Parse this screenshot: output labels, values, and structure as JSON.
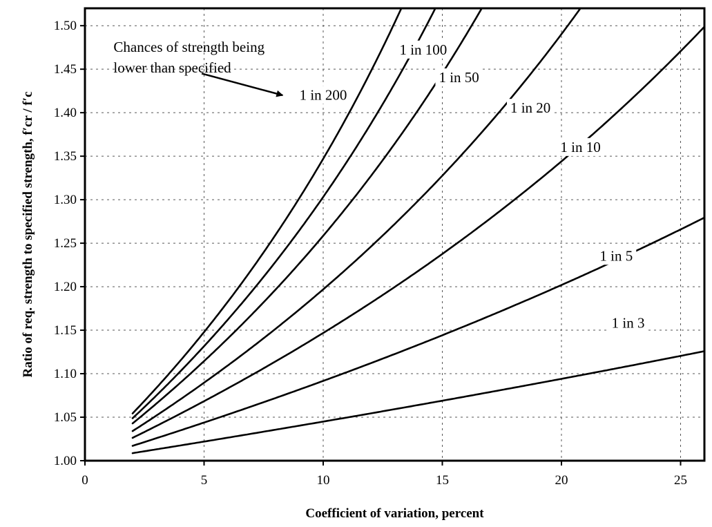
{
  "chart_data": {
    "type": "line",
    "xlabel": "Coefficient of variation, percent",
    "ylabel": "Ratio of req. strength to specified strength, f′cr / f′c",
    "xlim": [
      0,
      26
    ],
    "ylim": [
      1.0,
      1.52
    ],
    "x_ticks": [
      "0",
      "5",
      "10",
      "15",
      "20",
      "25"
    ],
    "x_tick_values": [
      0,
      5,
      10,
      15,
      20,
      25
    ],
    "y_ticks": [
      "1.00",
      "1.05",
      "1.10",
      "1.15",
      "1.20",
      "1.25",
      "1.30",
      "1.35",
      "1.40",
      "1.45",
      "1.50"
    ],
    "y_tick_values": [
      1.0,
      1.05,
      1.1,
      1.15,
      1.2,
      1.25,
      1.3,
      1.35,
      1.4,
      1.45,
      1.5
    ],
    "grid": true,
    "annotation": {
      "lines": [
        "Chances of strength being",
        "lower than specified"
      ],
      "x": 8.3,
      "y": 1.42
    },
    "series": [
      {
        "name": "1 in 3",
        "z": 0.43,
        "label_x": 22.8,
        "label_y": 1.153
      },
      {
        "name": "1 in 5",
        "z": 0.84,
        "label_x": 22.3,
        "label_y": 1.23
      },
      {
        "name": "1 in 10",
        "z": 1.28,
        "label_x": 20.8,
        "label_y": 1.355
      },
      {
        "name": "1 in 20",
        "z": 1.645,
        "label_x": 18.7,
        "label_y": 1.4
      },
      {
        "name": "1 in 50",
        "z": 2.054,
        "label_x": 15.7,
        "label_y": 1.435
      },
      {
        "name": "1 in 100",
        "z": 2.326,
        "label_x": 14.2,
        "label_y": 1.467
      },
      {
        "name": "1 in 200",
        "z": 2.576,
        "label_x": 10.0,
        "label_y": 1.415
      }
    ]
  }
}
